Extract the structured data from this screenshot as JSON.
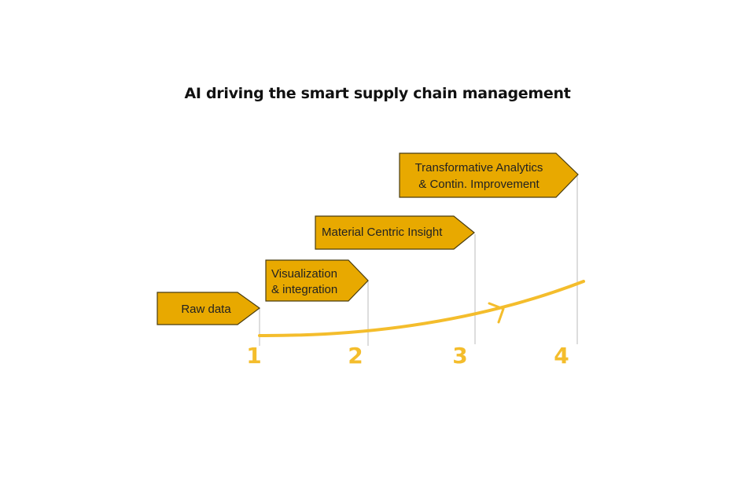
{
  "title": "AI driving the smart supply chain management",
  "stages": [
    {
      "number": "1",
      "line1": "Raw data",
      "line2": ""
    },
    {
      "number": "2",
      "line1": "Visualization",
      "line2": "& integration"
    },
    {
      "number": "3",
      "line1": "Material Centric Insight",
      "line2": ""
    },
    {
      "number": "4",
      "line1": "Transformative Analytics",
      "line2": "& Contin. Improvement"
    }
  ],
  "colors": {
    "box_fill": "#e8a900",
    "box_border": "#4a3d10",
    "accent": "#f4bd2c"
  }
}
